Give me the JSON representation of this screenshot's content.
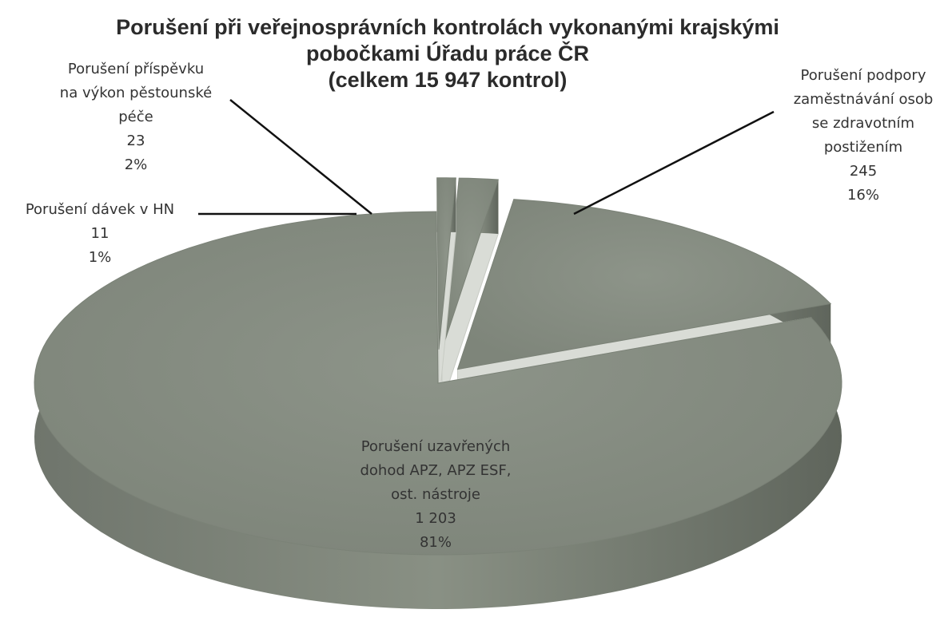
{
  "chart_data": {
    "type": "pie3d",
    "title": "Porušení při veřejnosprávních kontrolách vykonanými krajskými\npobočkami Úřadu práce ČR",
    "subtitle": "(celkem 15 947 kontrol)",
    "categories": [
      "Porušení podpory\nzaměstnávání osob\nse zdravotním\npostižením",
      "Porušení uzavřených\ndohod APZ, APZ ESF,\nost. nástroje",
      "Porušení dávek v HN",
      "Porušení příspěvku\nna výkon pěstounské\npéče"
    ],
    "values": [
      245,
      1203,
      11,
      23
    ],
    "value_labels": [
      "245",
      "1 203",
      "11",
      "23"
    ],
    "percents": [
      16,
      81,
      1,
      2
    ],
    "percent_labels": [
      "16%",
      "81%",
      "1%",
      "2%"
    ],
    "color": "#8d9489"
  }
}
